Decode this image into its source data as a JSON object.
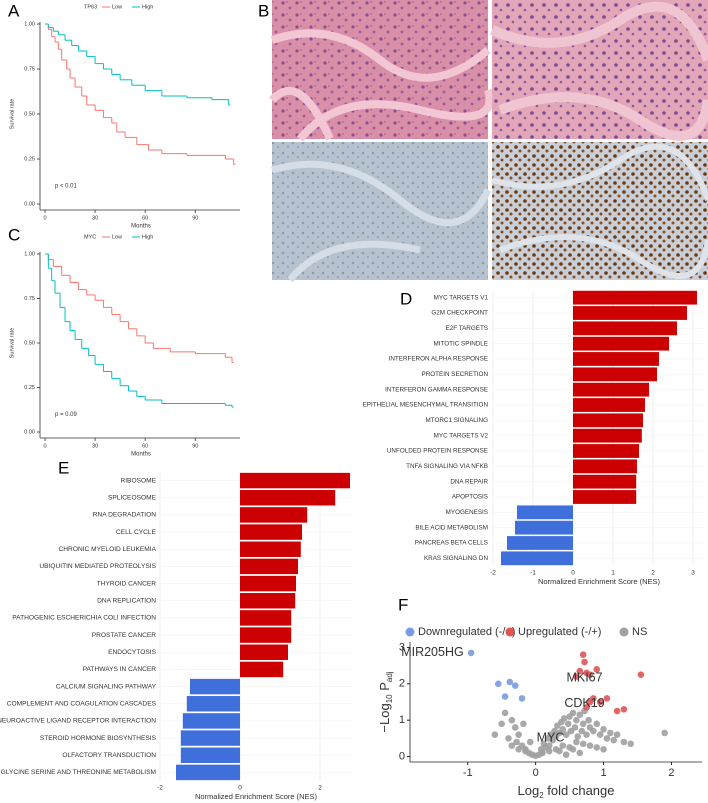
{
  "panel_b": {
    "label": "B"
  },
  "chart_data": [
    {
      "type": "survival",
      "label": "A",
      "legend_title": "TP63",
      "xlabel": "Months",
      "ylabel": "Survival rate",
      "annotation": "p < 0.01",
      "xlim": [
        0,
        115
      ],
      "ylim": [
        0,
        1
      ],
      "xticks": [
        0,
        30,
        60,
        90
      ],
      "yticks": [
        {
          "value": 0,
          "label": "0.00"
        },
        {
          "value": 0.25,
          "label": "0.25"
        },
        {
          "value": 0.5,
          "label": "0.50"
        },
        {
          "value": 0.75,
          "label": "0.75"
        },
        {
          "value": 1,
          "label": "1.00"
        }
      ],
      "series": [
        {
          "name": "Low",
          "color": "#f8766d",
          "x": [
            0,
            2,
            4,
            6,
            8,
            10,
            13,
            15,
            18,
            22,
            25,
            30,
            35,
            40,
            43,
            48,
            55,
            62,
            70,
            85,
            108,
            113
          ],
          "y": [
            1,
            0.97,
            0.93,
            0.9,
            0.86,
            0.8,
            0.75,
            0.7,
            0.65,
            0.6,
            0.55,
            0.52,
            0.48,
            0.45,
            0.4,
            0.37,
            0.33,
            0.3,
            0.28,
            0.27,
            0.25,
            0.22
          ]
        },
        {
          "name": "High",
          "color": "#00bfc4",
          "x": [
            0,
            2,
            5,
            8,
            12,
            16,
            20,
            25,
            30,
            35,
            40,
            45,
            52,
            60,
            70,
            85,
            100,
            110
          ],
          "y": [
            1,
            0.98,
            0.96,
            0.94,
            0.91,
            0.88,
            0.85,
            0.82,
            0.78,
            0.75,
            0.72,
            0.69,
            0.66,
            0.63,
            0.6,
            0.59,
            0.58,
            0.55
          ]
        }
      ]
    },
    {
      "type": "survival",
      "label": "C",
      "legend_title": "MYC",
      "xlabel": "Months",
      "ylabel": "Survival rate",
      "annotation": "p = 0.09",
      "xlim": [
        0,
        115
      ],
      "ylim": [
        0,
        1
      ],
      "xticks": [
        0,
        30,
        60,
        90
      ],
      "yticks": [
        {
          "value": 0,
          "label": "0.00"
        },
        {
          "value": 0.25,
          "label": "0.25"
        },
        {
          "value": 0.5,
          "label": "0.50"
        },
        {
          "value": 0.75,
          "label": "0.75"
        },
        {
          "value": 1,
          "label": "1.00"
        }
      ],
      "series": [
        {
          "name": "Low",
          "color": "#f8766d",
          "x": [
            0,
            2,
            5,
            10,
            15,
            20,
            25,
            30,
            35,
            40,
            45,
            50,
            55,
            60,
            65,
            75,
            90,
            108,
            112
          ],
          "y": [
            1,
            0.97,
            0.93,
            0.88,
            0.84,
            0.8,
            0.77,
            0.74,
            0.7,
            0.66,
            0.62,
            0.58,
            0.54,
            0.5,
            0.47,
            0.45,
            0.44,
            0.42,
            0.39
          ]
        },
        {
          "name": "High",
          "color": "#00bfc4",
          "x": [
            0,
            2,
            4,
            6,
            9,
            12,
            15,
            18,
            22,
            26,
            30,
            35,
            40,
            45,
            50,
            55,
            60,
            70,
            90,
            108,
            112
          ],
          "y": [
            1,
            0.92,
            0.85,
            0.78,
            0.7,
            0.62,
            0.57,
            0.52,
            0.47,
            0.43,
            0.38,
            0.34,
            0.3,
            0.26,
            0.23,
            0.2,
            0.18,
            0.16,
            0.16,
            0.15,
            0.14
          ]
        }
      ]
    },
    {
      "type": "hbar",
      "label": "D",
      "xlabel": "Normalized Enrichment Score (NES)",
      "xlim": [
        -2,
        3.3
      ],
      "xticks": [
        -2,
        -1,
        0,
        1,
        2,
        3
      ],
      "grid": true,
      "positive_color": "#cc0000",
      "negative_color": "#3f6fdb",
      "categories": [
        "MYC TARGETS V1",
        "G2M CHECKPOINT",
        "E2F TARGETS",
        "MITOTIC SPINDLE",
        "INTERFERON ALPHA RESPONSE",
        "PROTEIN SECRETION",
        "INTERFERON GAMMA RESPONSE",
        "EPITHELIAL MESENCHYMAL TRANSITION",
        "MTORC1 SIGNALING",
        "MYC TARGETS V2",
        "UNFOLDED PROTEIN RESPONSE",
        "TNFA SIGNALING VIA NFKB",
        "DNA REPAIR",
        "APOPTOSIS",
        "MYOGENESIS",
        "BILE ACID METABOLISM",
        "PANCREAS BETA CELLS",
        "KRAS SIGNALING DN"
      ],
      "values": [
        3.1,
        2.85,
        2.6,
        2.4,
        2.15,
        2.1,
        1.9,
        1.8,
        1.75,
        1.72,
        1.65,
        1.6,
        1.58,
        1.58,
        -1.4,
        -1.45,
        -1.65,
        -1.8
      ]
    },
    {
      "type": "hbar",
      "label": "E",
      "xlabel": "Normalized Enrichment Score (NES)",
      "xlim": [
        -2,
        2.8
      ],
      "xticks": [
        -2,
        0,
        2
      ],
      "grid": true,
      "positive_color": "#cc0000",
      "negative_color": "#3f6fdb",
      "categories": [
        "RIBOSOME",
        "SPLICEOSOME",
        "RNA DEGRADATION",
        "CELL CYCLE",
        "CHRONIC MYELOID LEUKEMIA",
        "UBIQUITIN MEDIATED PROTEOLYSIS",
        "THYROID CANCER",
        "DNA REPLICATION",
        "PATHOGENIC ESCHERICHIA COLI INFECTION",
        "PROSTATE CANCER",
        "ENDOCYTOSIS",
        "PATHWAYS IN CANCER",
        "CALCIUM SIGNALING PATHWAY",
        "COMPLEMENT AND COAGULATION CASCADES",
        "NEUROACTIVE LIGAND RECEPTOR INTERACTION",
        "STEROID HORMONE BIOSYNTHESIS",
        "OLFACTORY TRANSDUCTION",
        "GLYCINE SERINE AND THREONINE METABOLISM"
      ],
      "values": [
        2.75,
        2.38,
        1.68,
        1.55,
        1.52,
        1.45,
        1.4,
        1.38,
        1.28,
        1.28,
        1.2,
        1.08,
        -1.25,
        -1.33,
        -1.43,
        -1.48,
        -1.48,
        -1.6
      ]
    },
    {
      "type": "volcano",
      "label": "F",
      "xlabel": [
        "Log",
        "2",
        " fold change"
      ],
      "ylabel": [
        "−Log",
        "10",
        " P",
        "adj"
      ],
      "xlim": [
        -1.85,
        2.45
      ],
      "ylim": [
        -0.15,
        3.15
      ],
      "xticks": [
        -1,
        0,
        1,
        2
      ],
      "yticks": [
        0,
        1,
        2,
        3
      ],
      "series": [
        {
          "name": "Downregulated (-/+)",
          "color": "#7b9be0",
          "x": [
            -0.95,
            -0.55,
            -0.38,
            -0.3,
            -0.45,
            -0.2
          ],
          "y": [
            2.85,
            2.0,
            2.05,
            1.95,
            1.65,
            1.6
          ]
        },
        {
          "name": "Upregulated (-/+)",
          "color": "#e05555",
          "x": [
            0.7,
            0.72,
            0.65,
            0.75,
            0.8,
            0.6,
            0.9,
            0.85,
            0.95,
            1.05,
            1.2,
            1.3,
            1.55,
            0.8,
            0.75
          ],
          "y": [
            2.8,
            2.6,
            2.35,
            2.3,
            2.25,
            2.2,
            2.4,
            1.6,
            1.5,
            1.6,
            1.25,
            1.3,
            2.25,
            1.5,
            1.35
          ]
        },
        {
          "name": "NS",
          "color": "#a0a0a0",
          "x": [
            -0.6,
            -0.5,
            -0.45,
            -0.4,
            -0.35,
            -0.3,
            -0.28,
            -0.25,
            -0.2,
            -0.18,
            -0.15,
            -0.1,
            -0.08,
            -0.05,
            0,
            0.05,
            0.08,
            0.1,
            0.12,
            0.15,
            0.18,
            0.2,
            0.22,
            0.25,
            0.28,
            0.3,
            0.32,
            0.35,
            0.38,
            0.4,
            0.42,
            0.45,
            0.48,
            0.5,
            0.52,
            0.55,
            0.58,
            0.6,
            0.62,
            0.65,
            0.68,
            0.7,
            0.72,
            0.75,
            0.78,
            0.8,
            0.85,
            0.9,
            0.95,
            1.0,
            1.05,
            1.1,
            1.15,
            1.2,
            1.3,
            1.4,
            -0.35,
            -0.25,
            -0.15,
            0.1,
            0.2,
            0.3,
            0.4,
            0.5,
            0.6,
            0.7,
            0.8,
            0.9,
            0.35,
            0.55,
            0.65,
            0.45,
            1.0,
            1.9
          ],
          "y": [
            0.6,
            0.9,
            1.2,
            0.5,
            1.0,
            0.8,
            0.4,
            0.6,
            0.3,
            0.9,
            0.2,
            0.1,
            0.4,
            0.05,
            0.02,
            0.05,
            0.2,
            0.1,
            0.35,
            0.25,
            0.5,
            0.3,
            0.6,
            0.45,
            0.7,
            0.55,
            0.85,
            0.65,
            0.95,
            0.75,
            1.05,
            0.6,
            0.9,
            1.1,
            0.7,
            1.2,
            0.8,
            1.0,
            0.55,
            1.15,
            0.7,
            0.9,
            1.25,
            0.6,
            1.0,
            0.8,
            0.7,
            0.9,
            0.6,
            0.75,
            0.5,
            0.65,
            0.45,
            0.6,
            0.4,
            0.35,
            0.3,
            0.2,
            0.15,
            0.1,
            0.15,
            0.2,
            0.3,
            0.25,
            0.4,
            0.35,
            0.3,
            0.25,
            0.15,
            0.2,
            0.1,
            0.05,
            0.2,
            0.65
          ]
        }
      ],
      "annotations": [
        {
          "text": "MIR205HG",
          "x": -1.0,
          "y": 2.85
        },
        {
          "text": "MKI67",
          "x": 0.72,
          "y": 2.15
        },
        {
          "text": "CDK19",
          "x": 0.72,
          "y": 1.45
        },
        {
          "text": "MYC",
          "x": 0.22,
          "y": 0.5
        }
      ]
    }
  ]
}
